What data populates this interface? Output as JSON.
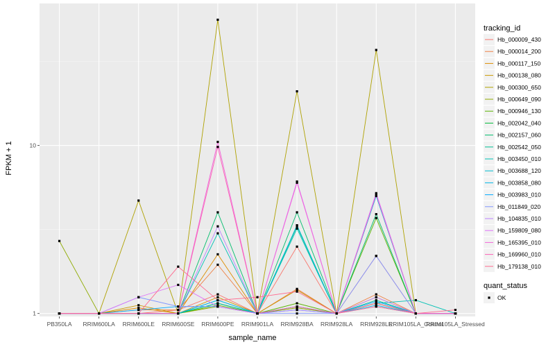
{
  "chart_data": {
    "type": "line",
    "xlabel": "sample_name",
    "ylabel": "FPKM + 1",
    "y_scale": "log10",
    "ylim": [
      0.96,
      70
    ],
    "y_ticks": [
      1,
      10
    ],
    "y_tick_labels": [
      "1",
      "10"
    ],
    "grid": true,
    "legend_position": "right",
    "categories": [
      "PB350LA",
      "RRIM600LA",
      "RRIM600LE",
      "RRIM600SE",
      "RRIM600PE",
      "RRIM901LA",
      "RRIM928BA",
      "RRIM928LA",
      "RRIM928LE",
      "RRIM105LA_Control",
      "RRIM105LA_Stressed"
    ],
    "color_legend_title": "tracking_id",
    "shape_legend_title": "quant_status",
    "shape_legend_items": [
      {
        "label": "OK",
        "shape": "square"
      }
    ],
    "series": [
      {
        "name": "Hb_000009_430",
        "color": "#F8766D",
        "values": [
          1.0,
          1.0,
          1.0,
          1.05,
          1.3,
          1.0,
          2.5,
          1.0,
          2.2,
          1.0,
          1.0
        ]
      },
      {
        "name": "Hb_000014_200",
        "color": "#EE8044",
        "values": [
          1.0,
          1.0,
          1.05,
          1.05,
          1.95,
          1.0,
          1.4,
          1.0,
          1.3,
          1.0,
          1.0
        ]
      },
      {
        "name": "Hb_000117_150",
        "color": "#DD8D00",
        "values": [
          1.0,
          1.0,
          1.08,
          1.0,
          2.25,
          1.0,
          1.1,
          1.0,
          1.25,
          1.0,
          1.0
        ]
      },
      {
        "name": "Hb_000138_080",
        "color": "#C99800",
        "values": [
          1.0,
          1.0,
          1.12,
          1.0,
          1.25,
          1.0,
          1.38,
          1.0,
          1.15,
          1.0,
          1.0
        ]
      },
      {
        "name": "Hb_000300_650",
        "color": "#AFA100",
        "values": [
          1.0,
          1.0,
          4.7,
          1.0,
          56.0,
          1.0,
          21.0,
          1.0,
          37.0,
          1.0,
          1.0
        ]
      },
      {
        "name": "Hb_000649_090",
        "color": "#8EAB00",
        "values": [
          2.7,
          1.0,
          1.0,
          1.0,
          1.1,
          1.0,
          1.08,
          1.0,
          1.1,
          1.0,
          1.0
        ]
      },
      {
        "name": "Hb_000946_130",
        "color": "#5BB300",
        "values": [
          1.0,
          1.0,
          1.0,
          1.0,
          1.12,
          1.0,
          1.15,
          1.0,
          3.7,
          1.0,
          1.0
        ]
      },
      {
        "name": "Hb_002042_040",
        "color": "#00BA38",
        "values": [
          1.0,
          1.0,
          1.0,
          1.0,
          1.15,
          1.0,
          1.1,
          1.0,
          1.15,
          1.0,
          1.0
        ]
      },
      {
        "name": "Hb_002157_060",
        "color": "#00BD6C",
        "values": [
          1.0,
          1.0,
          1.0,
          1.0,
          4.0,
          1.0,
          4.0,
          1.0,
          3.9,
          1.0,
          1.0
        ]
      },
      {
        "name": "Hb_002542_050",
        "color": "#00C093",
        "values": [
          1.0,
          1.0,
          1.0,
          1.0,
          1.15,
          1.0,
          3.3,
          1.0,
          1.2,
          1.0,
          1.0
        ]
      },
      {
        "name": "Hb_003450_010",
        "color": "#00C0B4",
        "values": [
          1.0,
          1.0,
          1.0,
          1.0,
          3.0,
          1.0,
          3.2,
          1.0,
          1.15,
          1.2,
          1.0
        ]
      },
      {
        "name": "Hb_003688_120",
        "color": "#00BCD0",
        "values": [
          1.0,
          1.0,
          1.0,
          1.0,
          1.2,
          1.0,
          3.35,
          1.0,
          5.0,
          1.0,
          1.0
        ]
      },
      {
        "name": "Hb_003858_080",
        "color": "#00B5E6",
        "values": [
          1.0,
          1.0,
          1.0,
          1.0,
          1.2,
          1.0,
          1.1,
          1.0,
          1.12,
          1.0,
          1.0
        ]
      },
      {
        "name": "Hb_003983_010",
        "color": "#00A9FF",
        "values": [
          1.0,
          1.0,
          1.05,
          1.1,
          1.1,
          1.0,
          1.05,
          1.0,
          1.18,
          1.0,
          1.0
        ]
      },
      {
        "name": "Hb_011849_020",
        "color": "#7F96FF",
        "values": [
          1.0,
          1.0,
          1.25,
          1.1,
          1.1,
          1.0,
          1.0,
          1.0,
          2.2,
          1.0,
          1.0
        ]
      },
      {
        "name": "Hb_104835_010",
        "color": "#B983FF",
        "values": [
          1.0,
          1.0,
          1.0,
          1.0,
          3.3,
          1.0,
          1.05,
          1.0,
          1.25,
          1.0,
          1.0
        ]
      },
      {
        "name": "Hb_159809_080",
        "color": "#DE71F9",
        "values": [
          1.0,
          1.0,
          1.25,
          1.48,
          1.1,
          1.0,
          6.1,
          1.0,
          5.2,
          1.0,
          1.0
        ]
      },
      {
        "name": "Hb_165395_010",
        "color": "#F265DA",
        "values": [
          1.0,
          1.0,
          1.0,
          1.0,
          10.5,
          1.0,
          6.0,
          1.0,
          5.1,
          1.0,
          1.0
        ]
      },
      {
        "name": "Hb_169960_010",
        "color": "#FC61B6",
        "values": [
          1.0,
          1.0,
          1.0,
          1.0,
          9.8,
          1.0,
          1.1,
          1.0,
          1.1,
          1.0,
          1.0
        ]
      },
      {
        "name": "Hb_179138_010",
        "color": "#FF6C90",
        "values": [
          1.0,
          1.0,
          1.0,
          1.9,
          1.2,
          1.25,
          1.35,
          1.0,
          1.15,
          1.0,
          1.05
        ]
      }
    ]
  }
}
